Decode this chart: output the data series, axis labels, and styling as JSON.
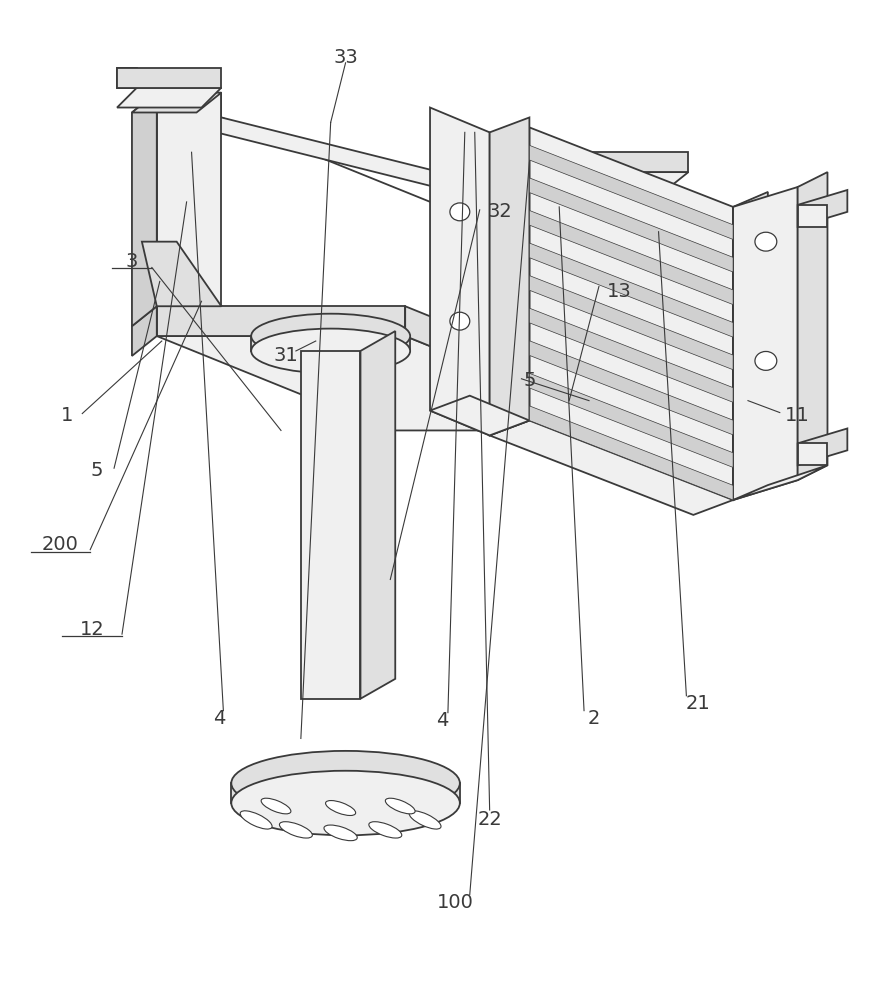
{
  "bg_color": "#ffffff",
  "lc": "#3a3a3a",
  "lw": 1.3,
  "tlw": 0.8,
  "flw": 0.6,
  "shade1": "#f0f0f0",
  "shade2": "#e0e0e0",
  "shade3": "#d0d0d0",
  "shade4": "#c8c8c8",
  "white": "#ffffff",
  "label_fs": 14
}
